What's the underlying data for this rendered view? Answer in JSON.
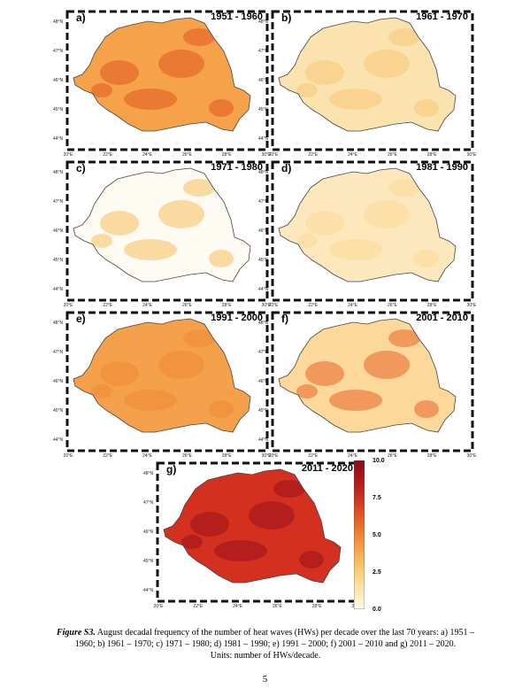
{
  "panels": [
    {
      "letter": "a)",
      "period": "1951 - 1960",
      "base": "#f6a24a",
      "hot": "#e05a20"
    },
    {
      "letter": "b)",
      "period": "1961 - 1970",
      "base": "#fbe3b0",
      "hot": "#f8c878"
    },
    {
      "letter": "c)",
      "period": "1971 - 1980",
      "base": "#fefbf2",
      "hot": "#f7c060"
    },
    {
      "letter": "d)",
      "period": "1981 - 1990",
      "base": "#fde8be",
      "hot": "#fbd896"
    },
    {
      "letter": "e)",
      "period": "1991 - 2000",
      "base": "#f5a04a",
      "hot": "#ef8838"
    },
    {
      "letter": "f)",
      "period": "2001 - 2010",
      "base": "#fcd99b",
      "hot": "#e8622a"
    },
    {
      "letter": "g)",
      "period": "2011 - 2020",
      "base": "#d43020",
      "hot": "#9a1218"
    }
  ],
  "axes": {
    "lat_labels": [
      "48°N",
      "47°N",
      "46°N",
      "45°N",
      "44°N"
    ],
    "lon_labels": [
      "20°E",
      "22°E",
      "24°E",
      "26°E",
      "28°E",
      "30°E"
    ]
  },
  "colorbar": {
    "ticks": [
      "10.0",
      "7.5",
      "5.0",
      "2.5",
      "0.0"
    ],
    "colors": [
      "#fffbe6",
      "#fde4a8",
      "#fbc46e",
      "#f69a45",
      "#ea6a2a",
      "#d63a1e",
      "#b01a1a",
      "#8a0a16"
    ]
  },
  "caption": {
    "label": "Figure S3.",
    "text": " August decadal frequency of the number of heat waves (HWs) per decade over the last 70 years: a) 1951 – 1960; b) 1961 – 1970; c)  1971 – 1980; d) 1981 – 1990; e) 1991 – 2000; f) 2001 – 2010 and g) 2011 – 2020.",
    "units": "Units: number of HWs/decade."
  },
  "page_number": "5"
}
